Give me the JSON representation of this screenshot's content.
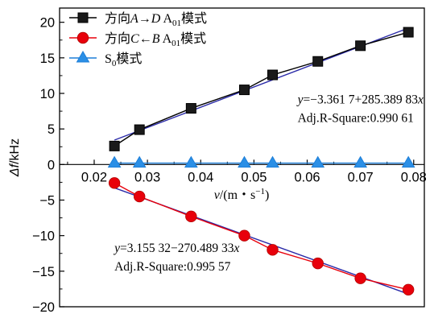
{
  "chart_data": {
    "type": "scatter",
    "xlabel_var": "v",
    "xlabel_unit": "/(m・s",
    "xlabel_exp": "−1",
    "xlabel_close": ")",
    "ylabel_var": "Δf",
    "ylabel_unit": "/kHz",
    "xlim": [
      0.0135,
      0.082
    ],
    "ylim": [
      -20,
      22
    ],
    "x_ticks": [
      0.02,
      0.03,
      0.04,
      0.05,
      0.06,
      0.07,
      0.08
    ],
    "x_tick_labels": [
      "0.02",
      "0.03",
      "0.04",
      "0.05",
      "0.06",
      "0.07",
      "0.08"
    ],
    "y_ticks": [
      -20,
      -15,
      -10,
      -5,
      0,
      5,
      10,
      15,
      20
    ],
    "y_tick_labels": [
      "−20",
      "−15",
      "−10",
      "−5",
      "0",
      "5",
      "10",
      "15",
      "20"
    ],
    "legend_position": "top-left",
    "series": [
      {
        "name": "方向A→D A01模式",
        "legend": {
          "pre": "方向",
          "a": "A",
          "arrow": "→",
          "b": "D",
          "sp": " A",
          "sub": "01",
          "post": "模式"
        },
        "marker": "square",
        "color": "#000000",
        "fill": "#1a1a1a",
        "x": [
          0.0238,
          0.0285,
          0.0382,
          0.0482,
          0.0535,
          0.062,
          0.07,
          0.079
        ],
        "y": [
          2.6,
          4.9,
          7.9,
          10.5,
          12.6,
          14.5,
          16.7,
          18.6
        ]
      },
      {
        "name": "方向C←B A01模式",
        "legend": {
          "pre": "方向",
          "a": "C",
          "arrow": "←",
          "b": "B",
          "sp": " A",
          "sub": "01",
          "post": "模式"
        },
        "marker": "circle",
        "color": "#e8000b",
        "fill": "#e8000b",
        "x": [
          0.0238,
          0.0285,
          0.0382,
          0.0482,
          0.0535,
          0.062,
          0.07,
          0.079
        ],
        "y": [
          -2.6,
          -4.5,
          -7.3,
          -10.0,
          -12.0,
          -13.9,
          -16.0,
          -17.6
        ]
      },
      {
        "name": "S0模式",
        "legend": {
          "pre": "S",
          "sub": "0",
          "post": "模式"
        },
        "marker": "triangle",
        "color": "#1e7fd8",
        "fill": "#2b8fe6",
        "x": [
          0.0238,
          0.0285,
          0.0382,
          0.0482,
          0.0535,
          0.062,
          0.07,
          0.079
        ],
        "y": [
          0.2,
          0.2,
          0.2,
          0.2,
          0.2,
          0.2,
          0.2,
          0.2
        ]
      }
    ],
    "fits": [
      {
        "intercept": -3.3617,
        "slope": 285.38983,
        "x_range": [
          0.0238,
          0.079
        ],
        "color": "#2a2aa8"
      },
      {
        "intercept": 3.15532,
        "slope": -270.48933,
        "x_range": [
          0.0238,
          0.079
        ],
        "color": "#2a2aa8"
      }
    ],
    "annotations": [
      {
        "eq_var": "y",
        "eq_rest": "=−3.361 7+285.389 83",
        "eq_x": "x",
        "r2": "Adj.R-Square:0.990 61",
        "anchor": [
          0.0582,
          8.6
        ]
      },
      {
        "eq_var": "y",
        "eq_rest": "=3.155 32−270.489 33",
        "eq_x": "x",
        "r2": "Adj.R-Square:0.995 57",
        "anchor": [
          0.0238,
          -12.3
        ]
      }
    ]
  }
}
